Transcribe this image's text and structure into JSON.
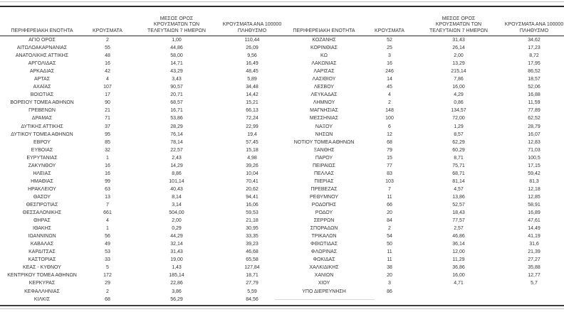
{
  "table": {
    "headers": {
      "region": "ΠΕΡΙΦΕΡΕΙΑΚΗ ΕΝΟΤΗΤΑ",
      "cases": "ΚΡΟΥΣΜΑΤΑ",
      "avg_lines": [
        "ΜΕΣΟΣ ΟΡΟΣ",
        "ΚΡΟΥΣΜΑΤΩΝ ΤΩΝ",
        "ΤΕΛΕΥΤΑΙΩΝ 7 ΗΜΕΡΩΝ"
      ],
      "per100k_lines": [
        "ΚΡΟΥΣΜΑΤΑ ΑΝΑ 100000",
        "ΠΛΗΘΥΣΜΟ"
      ]
    },
    "left_rows": [
      [
        "ΑΓΙΟ ΟΡΟΣ",
        "2",
        "1,00",
        "110,44"
      ],
      [
        "ΑΙΤΩΛΟΑΚΑΡΝΑΝΙΑΣ",
        "55",
        "44,86",
        "26,09"
      ],
      [
        "ΑΝΑΤΟΛΙΚΗΣ ΑΤΤΙΚΗΣ",
        "48",
        "58,00",
        "9,56"
      ],
      [
        "ΑΡΓΟΛΙΔΑΣ",
        "16",
        "14,71",
        "16,49"
      ],
      [
        "ΑΡΚΑΔΙΑΣ",
        "42",
        "43,29",
        "48,45"
      ],
      [
        "ΑΡΤΑΣ",
        "4",
        "3,43",
        "5,89"
      ],
      [
        "ΑΧΑΪΑΣ",
        "107",
        "90,57",
        "34,48"
      ],
      [
        "ΒΟΙΩΤΙΑΣ",
        "17",
        "20,71",
        "14,42"
      ],
      [
        "ΒΟΡΕΙΟΥ ΤΟΜΕΑ ΑΘΗΝΩΝ",
        "90",
        "68,57",
        "15,21"
      ],
      [
        "ΓΡΕΒΕΝΩΝ",
        "21",
        "16,71",
        "66,13"
      ],
      [
        "ΔΡΑΜΑΣ",
        "71",
        "53,86",
        "72,24"
      ],
      [
        "ΔΥΤΙΚΗΣ ΑΤΤΙΚΗΣ",
        "37",
        "28,29",
        "22,99"
      ],
      [
        "ΔΥΤΙΚΟΥ ΤΟΜΕΑ ΑΘΗΝΩΝ",
        "95",
        "76,14",
        "19,4"
      ],
      [
        "ΕΒΡΟΥ",
        "85",
        "78,14",
        "57,45"
      ],
      [
        "ΕΥΒΟΙΑΣ",
        "32",
        "22,57",
        "15,18"
      ],
      [
        "ΕΥΡΥΤΑΝΙΑΣ",
        "1",
        "2,43",
        "4,98"
      ],
      [
        "ΖΑΚΥΝΘΟΥ",
        "16",
        "14,29",
        "39,26"
      ],
      [
        "ΗΛΕΙΑΣ",
        "16",
        "8,86",
        "10,04"
      ],
      [
        "ΗΜΑΘΙΑΣ",
        "99",
        "101,14",
        "70,41"
      ],
      [
        "ΗΡΑΚΛΕΙΟΥ",
        "63",
        "40,43",
        "20,62"
      ],
      [
        "ΘΑΣΟΥ",
        "13",
        "8,14",
        "94,41"
      ],
      [
        "ΘΕΣΠΡΩΤΙΑΣ",
        "7",
        "3,14",
        "16,06"
      ],
      [
        "ΘΕΣΣΑΛΟΝΙΚΗΣ",
        "661",
        "504,00",
        "59,53"
      ],
      [
        "ΘΗΡΑΣ",
        "4",
        "2,00",
        "21,18"
      ],
      [
        "ΙΘΑΚΗΣ",
        "1",
        "0,29",
        "30,95"
      ],
      [
        "ΙΩΑΝΝΙΝΩΝ",
        "56",
        "44,29",
        "33,35"
      ],
      [
        "ΚΑΒΑΛΑΣ",
        "49",
        "32,14",
        "39,23"
      ],
      [
        "ΚΑΡΔΙΤΣΑΣ",
        "53",
        "31,43",
        "46,68"
      ],
      [
        "ΚΑΣΤΟΡΙΑΣ",
        "33",
        "19,00",
        "65,58"
      ],
      [
        "ΚΕΑΣ - ΚΥΘΝΟΥ",
        "5",
        "1,43",
        "127,84"
      ],
      [
        "ΚΕΝΤΡΙΚΟΥ ΤΟΜΕΑ ΑΘΗΝΩΝ",
        "172",
        "185,14",
        "18,71"
      ],
      [
        "ΚΕΡΚΥΡΑΣ",
        "29",
        "22,86",
        "27,79"
      ],
      [
        "ΚΕΦΑΛΛΗΝΙΑΣ",
        "2",
        "3,86",
        "5,59"
      ],
      [
        "ΚΙΛΚΙΣ",
        "68",
        "56,29",
        "84,56"
      ]
    ],
    "right_rows": [
      [
        "ΚΟΖΑΝΗΣ",
        "52",
        "31,43",
        "34,62"
      ],
      [
        "ΚΟΡΙΝΘΙΑΣ",
        "25",
        "26,14",
        "17,23"
      ],
      [
        "ΚΩ",
        "3",
        "2,00",
        "8,72"
      ],
      [
        "ΛΑΚΩΝΙΑΣ",
        "16",
        "13,29",
        "17,95"
      ],
      [
        "ΛΑΡΙΣΑΣ",
        "246",
        "215,14",
        "86,52"
      ],
      [
        "ΛΑΣΙΘΙΟΥ",
        "14",
        "7,86",
        "18,57"
      ],
      [
        "ΛΕΣΒΟΥ",
        "45",
        "16,00",
        "52,06"
      ],
      [
        "ΛΕΥΚΑΔΑΣ",
        "4",
        "4,29",
        "16,88"
      ],
      [
        "ΛΗΜΝΟΥ",
        "2",
        "0,86",
        "11,59"
      ],
      [
        "ΜΑΓΝΗΣΙΑΣ",
        "148",
        "134,57",
        "77,89"
      ],
      [
        "ΜΕΣΣΗΝΙΑΣ",
        "100",
        "72,00",
        "62,52"
      ],
      [
        "ΝΑΞΟΥ",
        "6",
        "1,29",
        "28,79"
      ],
      [
        "ΝΗΣΩΝ",
        "12",
        "8,57",
        "16,07"
      ],
      [
        "ΝΟΤΙΟΥ ΤΟΜΕΑ ΑΘΗΝΩΝ",
        "68",
        "62,29",
        "12,83"
      ],
      [
        "ΞΑΝΘΗΣ",
        "79",
        "60,29",
        "71,03"
      ],
      [
        "ΠΑΡΟΥ",
        "15",
        "8,71",
        "100,5"
      ],
      [
        "ΠΕΙΡΑΙΩΣ",
        "77",
        "75,71",
        "17,15"
      ],
      [
        "ΠΕΛΛΑΣ",
        "83",
        "68,71",
        "59,42"
      ],
      [
        "ΠΙΕΡΙΑΣ",
        "103",
        "81,14",
        "81,3"
      ],
      [
        "ΠΡΕΒΕΖΑΣ",
        "7",
        "4,57",
        "12,18"
      ],
      [
        "ΡΕΘΥΜΝΟΥ",
        "11",
        "13,86",
        "12,85"
      ],
      [
        "ΡΟΔΟΠΗΣ",
        "66",
        "52,57",
        "58,91"
      ],
      [
        "ΡΟΔΟΥ",
        "20",
        "18,43",
        "16,89"
      ],
      [
        "ΣΕΡΡΩΝ",
        "84",
        "77,57",
        "47,61"
      ],
      [
        "ΣΠΟΡΑΔΩΝ",
        "2",
        "2,57",
        "14,49"
      ],
      [
        "ΤΡΙΚΑΛΩΝ",
        "54",
        "46,86",
        "41,19"
      ],
      [
        "ΦΘΙΩΤΙΔΑΣ",
        "50",
        "36,14",
        "31,6"
      ],
      [
        "ΦΛΩΡΙΝΑΣ",
        "11",
        "12,00",
        "21,39"
      ],
      [
        "ΦΩΚΙΔΑΣ",
        "11",
        "11,29",
        "27,27"
      ],
      [
        "ΧΑΛΚΙΔΙΚΗΣ",
        "38",
        "36,86",
        "35,88"
      ],
      [
        "ΧΑΝΙΩΝ",
        "20",
        "16,00",
        "12,77"
      ],
      [
        "ΧΙΟΥ",
        "3",
        "4,71",
        "5,7"
      ],
      [
        "ΥΠΟ ΔΙΕΡΕΥΝΗΣΗ",
        "86",
        "",
        ""
      ]
    ]
  }
}
